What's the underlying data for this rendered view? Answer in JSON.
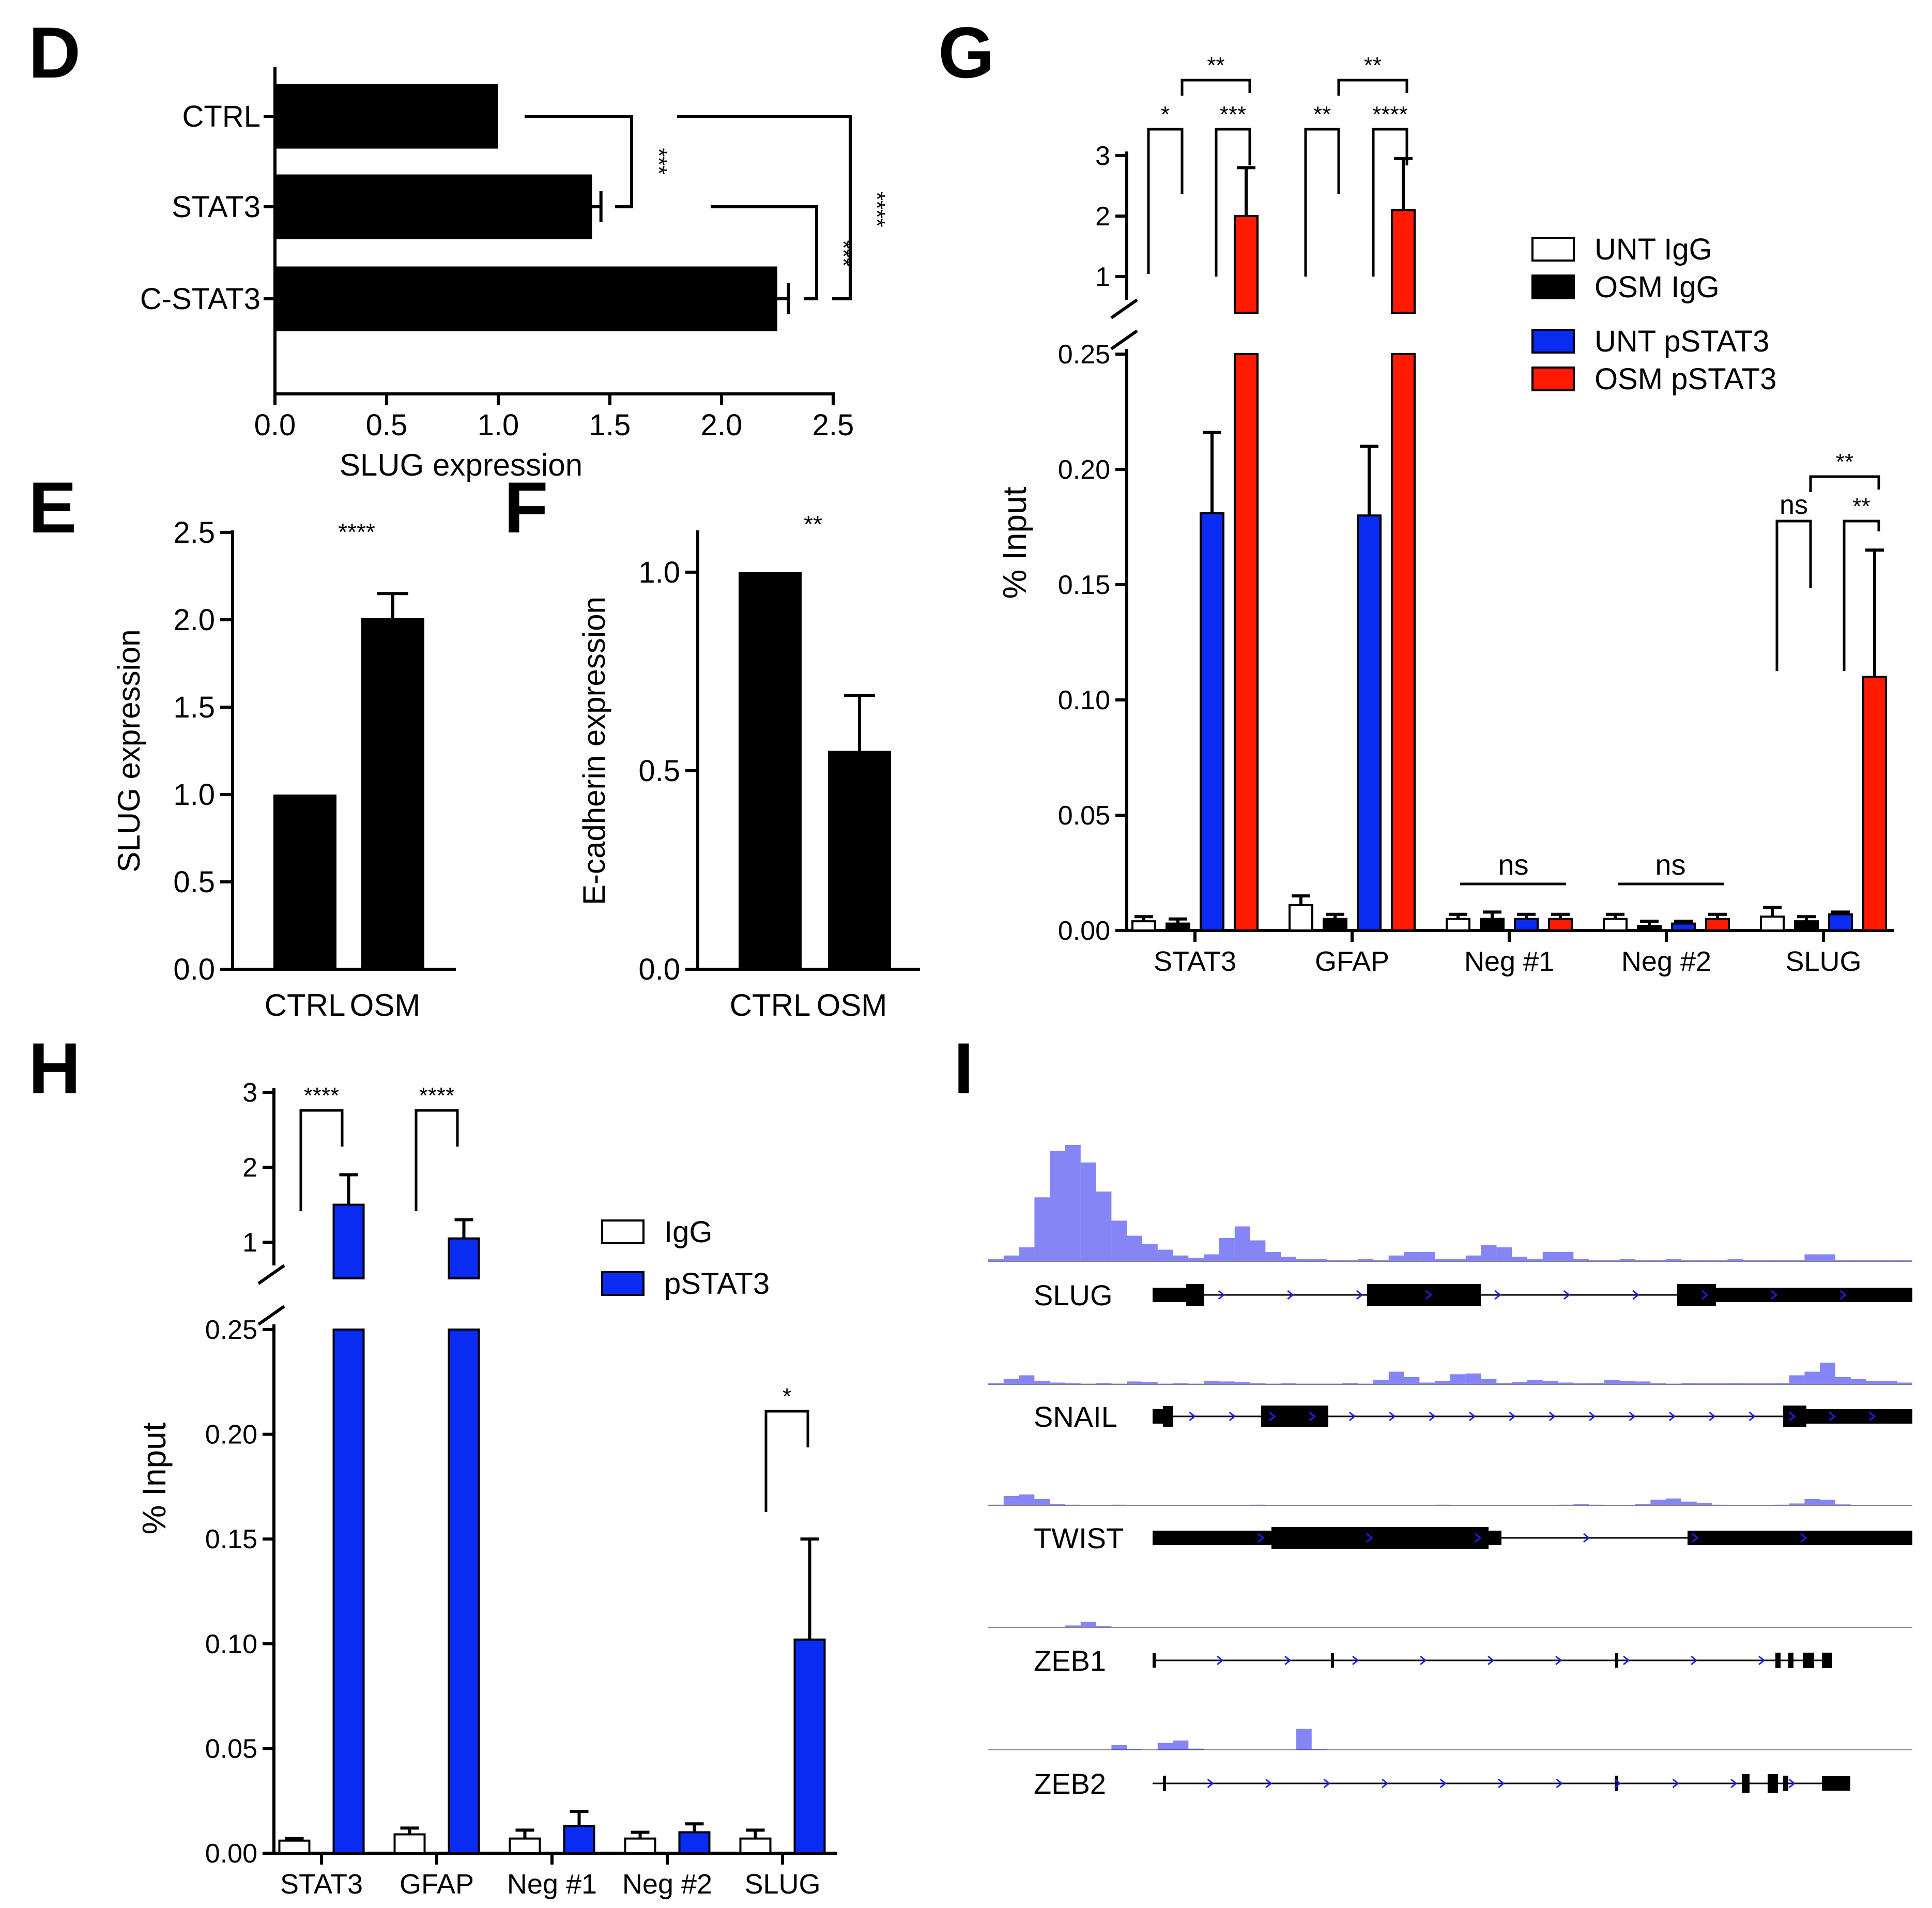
{
  "panels": {
    "D": "D",
    "E": "E",
    "F": "F",
    "G": "G",
    "H": "H",
    "I": "I"
  },
  "colors": {
    "black": "#000000",
    "white": "#ffffff",
    "blue": "#0a2cf2",
    "red": "#ff1a00",
    "track": "#2020ee"
  },
  "chart_data": [
    {
      "id": "D",
      "type": "bar",
      "orientation": "horizontal",
      "categories": [
        "CTRL",
        "STAT3",
        "C-STAT3"
      ],
      "values": [
        1.0,
        1.42,
        2.25
      ],
      "errors": [
        0,
        0.04,
        0.05
      ],
      "xlabel": "SLUG expression",
      "xlim": [
        0,
        2.5
      ],
      "xticks": [
        "0.0",
        "0.5",
        "1.0",
        "1.5",
        "2.0",
        "2.5"
      ],
      "significance": [
        {
          "pair": "CTRL vs STAT3",
          "label": "***"
        },
        {
          "pair": "STAT3 vs C-STAT3",
          "label": "***"
        },
        {
          "pair": "CTRL vs C-STAT3",
          "label": "****"
        }
      ]
    },
    {
      "id": "E",
      "type": "bar",
      "categories": [
        "CTRL",
        "OSM"
      ],
      "values": [
        1.0,
        2.01
      ],
      "errors": [
        0,
        0.14
      ],
      "ylabel": "SLUG expression",
      "ylim": [
        0,
        2.5
      ],
      "yticks": [
        "0.0",
        "0.5",
        "1.0",
        "1.5",
        "2.0",
        "2.5"
      ],
      "significance": "****"
    },
    {
      "id": "F",
      "type": "bar",
      "categories": [
        "CTRL",
        "OSM"
      ],
      "values": [
        1.0,
        0.55
      ],
      "errors": [
        0,
        0.14
      ],
      "ylabel": "E-cadherin expression",
      "ylim": [
        0,
        1.1
      ],
      "yticks": [
        "0.0",
        "0.5",
        "1.0"
      ],
      "significance": "**"
    },
    {
      "id": "G",
      "type": "bar",
      "axis_break": true,
      "categories": [
        "STAT3",
        "GFAP",
        "Neg #1",
        "Neg #2",
        "SLUG"
      ],
      "series": [
        {
          "name": "UNT IgG",
          "color": "#ffffff",
          "values": [
            0.004,
            0.011,
            0.005,
            0.005,
            0.006
          ],
          "errors": [
            0.002,
            0.004,
            0.002,
            0.002,
            0.004
          ]
        },
        {
          "name": "OSM IgG",
          "color": "#000000",
          "values": [
            0.003,
            0.005,
            0.005,
            0.002,
            0.004
          ],
          "errors": [
            0.002,
            0.002,
            0.003,
            0.002,
            0.002
          ]
        },
        {
          "name": "UNT pSTAT3",
          "color": "#0a2cf2",
          "values": [
            0.181,
            0.18,
            0.005,
            0.003,
            0.007
          ],
          "errors": [
            0.035,
            0.03,
            0.002,
            0.001,
            0.001
          ]
        },
        {
          "name": "OSM pSTAT3",
          "color": "#ff1a00",
          "values": [
            2.0,
            2.1,
            0.005,
            0.005,
            0.11
          ],
          "errors": [
            0.8,
            0.85,
            0.002,
            0.002,
            0.055
          ]
        }
      ],
      "ylabel": "% Input",
      "yticks_low": [
        "0.00",
        "0.05",
        "0.10",
        "0.15",
        "0.20",
        "0.25"
      ],
      "yticks_high": [
        "1",
        "2",
        "3"
      ],
      "legend": [
        "UNT IgG",
        "OSM IgG",
        "UNT pSTAT3",
        "OSM pSTAT3"
      ],
      "significance_labels": {
        "stat3": [
          "*",
          "***",
          "**"
        ],
        "gfap": [
          "**",
          "****",
          "**"
        ],
        "neg1": "ns",
        "neg2": "ns",
        "slug": [
          "ns",
          "**",
          "**"
        ]
      }
    },
    {
      "id": "H",
      "type": "bar",
      "axis_break": true,
      "categories": [
        "STAT3",
        "GFAP",
        "Neg #1",
        "Neg #2",
        "SLUG"
      ],
      "series": [
        {
          "name": "IgG",
          "color": "#ffffff",
          "values": [
            0.006,
            0.009,
            0.007,
            0.007,
            0.007
          ],
          "errors": [
            0.001,
            0.003,
            0.004,
            0.003,
            0.004
          ]
        },
        {
          "name": "pSTAT3",
          "color": "#0a2cf2",
          "values": [
            1.5,
            1.05,
            0.013,
            0.01,
            0.102
          ],
          "errors": [
            0.4,
            0.25,
            0.007,
            0.004,
            0.048
          ]
        }
      ],
      "ylabel": "% Input",
      "yticks_low": [
        "0.00",
        "0.05",
        "0.10",
        "0.15",
        "0.20",
        "0.25"
      ],
      "yticks_high": [
        "1",
        "2",
        "3"
      ],
      "legend": [
        "IgG",
        "pSTAT3"
      ],
      "significance_labels": {
        "stat3": "****",
        "gfap": "****",
        "slug": "*"
      }
    },
    {
      "id": "I",
      "type": "genome_tracks",
      "tracks": [
        {
          "gene": "SLUG",
          "signal": [
            0.02,
            0.05,
            0.12,
            0.55,
            0.95,
            1.0,
            0.85,
            0.6,
            0.35,
            0.22,
            0.15,
            0.1,
            0.05,
            0.03,
            0.06,
            0.2,
            0.3,
            0.18,
            0.08,
            0.04,
            0.02,
            0.02,
            0.01,
            0.01,
            0.02,
            0.01,
            0.05,
            0.08,
            0.08,
            0.02,
            0.02,
            0.05,
            0.14,
            0.12,
            0.04,
            0.02,
            0.08,
            0.08,
            0.02,
            0.01,
            0.01,
            0.02,
            0.01,
            0.01,
            0.02,
            0.01,
            0.01,
            0.01,
            0.02,
            0.01,
            0.01,
            0.01,
            0.01,
            0.06,
            0.06,
            0.01,
            0.01,
            0.01,
            0.01,
            0.01
          ]
        },
        {
          "gene": "SNAIL",
          "signal": [
            0.03,
            0.15,
            0.25,
            0.1,
            0.05,
            0.03,
            0.02,
            0.04,
            0.02,
            0.08,
            0.06,
            0.02,
            0.03,
            0.02,
            0.1,
            0.08,
            0.06,
            0.03,
            0.02,
            0.03,
            0.02,
            0.02,
            0.02,
            0.04,
            0.02,
            0.12,
            0.35,
            0.2,
            0.05,
            0.1,
            0.28,
            0.3,
            0.15,
            0.04,
            0.06,
            0.12,
            0.1,
            0.05,
            0.03,
            0.04,
            0.12,
            0.1,
            0.08,
            0.03,
            0.02,
            0.04,
            0.03,
            0.03,
            0.04,
            0.03,
            0.03,
            0.04,
            0.25,
            0.35,
            0.6,
            0.2,
            0.15,
            0.1,
            0.1,
            0.05
          ]
        },
        {
          "gene": "TWIST",
          "signal": [
            0.02,
            0.3,
            0.35,
            0.2,
            0.05,
            0.02,
            0.01,
            0.01,
            0.02,
            0.01,
            0.01,
            0.01,
            0.01,
            0.01,
            0.01,
            0.01,
            0.01,
            0.02,
            0.01,
            0.01,
            0.01,
            0.01,
            0.01,
            0.01,
            0.01,
            0.01,
            0.01,
            0.01,
            0.01,
            0.02,
            0.01,
            0.01,
            0.01,
            0.01,
            0.01,
            0.01,
            0.01,
            0.02,
            0.04,
            0.02,
            0.01,
            0.01,
            0.05,
            0.18,
            0.22,
            0.12,
            0.08,
            0.02,
            0.01,
            0.01,
            0.01,
            0.02,
            0.06,
            0.2,
            0.18,
            0.03,
            0.01,
            0.01,
            0.01,
            0.01
          ]
        },
        {
          "gene": "ZEB1",
          "signal": [
            0.01,
            0.01,
            0.01,
            0.01,
            0.01,
            0.12,
            0.35,
            0.1,
            0.01,
            0.01,
            0.01,
            0.01,
            0.01,
            0.01,
            0.01,
            0.01,
            0.01,
            0.01,
            0.01,
            0.01,
            0.01,
            0.01,
            0.01,
            0.01,
            0.01,
            0.01,
            0.01,
            0.01,
            0.01,
            0.01,
            0.01,
            0.01,
            0.01,
            0.01,
            0.01,
            0.01,
            0.01,
            0.01,
            0.01,
            0.01,
            0.01,
            0.01,
            0.01,
            0.01,
            0.01,
            0.01,
            0.01,
            0.01,
            0.01,
            0.01,
            0.01,
            0.01,
            0.01,
            0.01,
            0.01,
            0.01,
            0.01,
            0.01,
            0.01,
            0.01
          ]
        },
        {
          "gene": "ZEB2",
          "signal": [
            0.01,
            0.01,
            0.01,
            0.01,
            0.01,
            0.01,
            0.01,
            0.01,
            0.2,
            0.02,
            0.01,
            0.3,
            0.4,
            0.05,
            0.01,
            0.01,
            0.01,
            0.01,
            0.01,
            0.01,
            0.9,
            0.02,
            0.01,
            0.01,
            0.01,
            0.01,
            0.01,
            0.01,
            0.01,
            0.01,
            0.01,
            0.01,
            0.01,
            0.01,
            0.01,
            0.01,
            0.01,
            0.01,
            0.01,
            0.01,
            0.01,
            0.01,
            0.01,
            0.01,
            0.01,
            0.01,
            0.01,
            0.01,
            0.01,
            0.01,
            0.01,
            0.01,
            0.01,
            0.01,
            0.01,
            0.01,
            0.01,
            0.01,
            0.01,
            0.01
          ]
        }
      ]
    }
  ]
}
